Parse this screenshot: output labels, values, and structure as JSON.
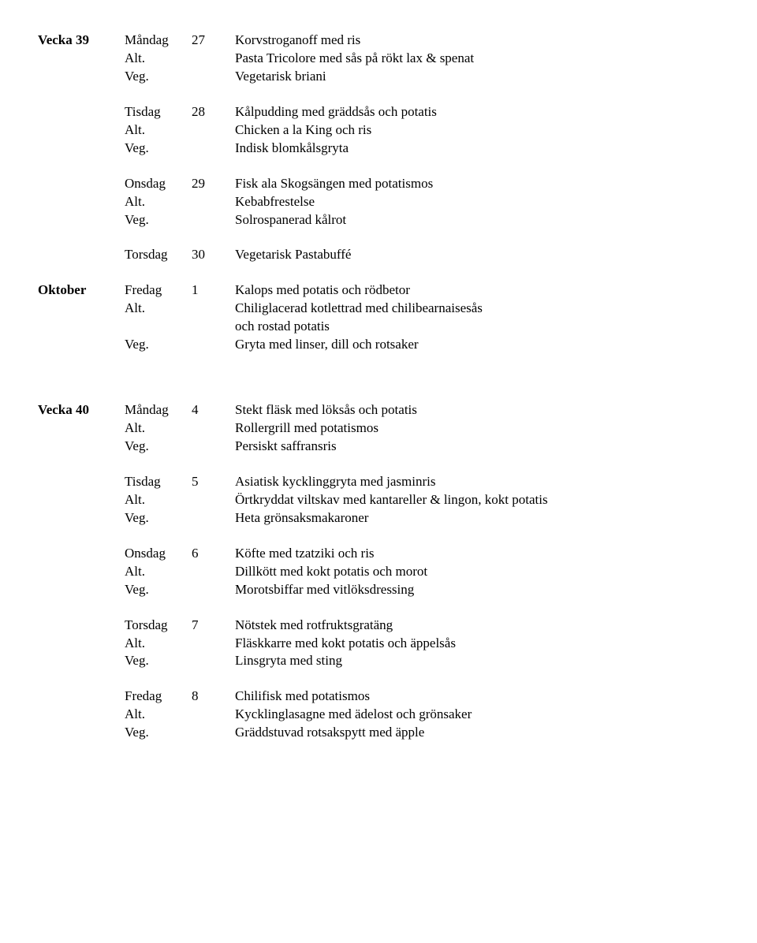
{
  "weeks": [
    {
      "label": "Vecka 39",
      "monthLabel": "Oktober",
      "days": [
        {
          "day": "Måndag",
          "num": "27",
          "rows": [
            {
              "prefix": "",
              "text": "Korvstroganoff med ris"
            },
            {
              "prefix": "Alt.",
              "text": "Pasta Tricolore med sås på rökt lax & spenat"
            },
            {
              "prefix": "Veg.",
              "text": "Vegetarisk briani"
            }
          ]
        },
        {
          "day": "Tisdag",
          "num": "28",
          "rows": [
            {
              "prefix": "",
              "text": "Kålpudding med gräddsås och potatis"
            },
            {
              "prefix": "Alt.",
              "text": "Chicken a la King och ris"
            },
            {
              "prefix": "Veg.",
              "text": "Indisk blomkålsgryta"
            }
          ]
        },
        {
          "day": "Onsdag",
          "num": "29",
          "rows": [
            {
              "prefix": "",
              "text": "Fisk ala Skogsängen med potatismos"
            },
            {
              "prefix": "Alt.",
              "text": "Kebabfrestelse"
            },
            {
              "prefix": "Veg.",
              "text": "Solrospanerad kålrot"
            }
          ]
        },
        {
          "day": "Torsdag",
          "num": "30",
          "rows": [
            {
              "prefix": "",
              "text": "Vegetarisk Pastabuffé"
            }
          ]
        },
        {
          "day": "Fredag",
          "num": "1",
          "monthStart": true,
          "rows": [
            {
              "prefix": "",
              "text": "Kalops med potatis och rödbetor"
            },
            {
              "prefix": "Alt.",
              "text": "Chiliglacerad kotlettrad med chilibearnaisesås"
            },
            {
              "prefix": "",
              "text": "och rostad potatis",
              "indent": true
            },
            {
              "prefix": "Veg.",
              "text": "Gryta med linser, dill och rotsaker"
            }
          ]
        }
      ]
    },
    {
      "label": "Vecka 40",
      "days": [
        {
          "day": "Måndag",
          "num": "4",
          "rows": [
            {
              "prefix": "",
              "text": "Stekt fläsk med löksås och potatis"
            },
            {
              "prefix": "Alt.",
              "text": "Rollergrill med potatismos"
            },
            {
              "prefix": "Veg.",
              "text": "Persiskt saffransris"
            }
          ]
        },
        {
          "day": "Tisdag",
          "num": "5",
          "rows": [
            {
              "prefix": "",
              "text": "Asiatisk kycklinggryta med jasminris"
            },
            {
              "prefix": "Alt.",
              "text": "Örtkryddat viltskav med kantareller & lingon, kokt potatis"
            },
            {
              "prefix": "Veg.",
              "text": "Heta grönsaksmakaroner"
            }
          ]
        },
        {
          "day": "Onsdag",
          "num": "6",
          "rows": [
            {
              "prefix": "",
              "text": "Köfte med tzatziki och ris"
            },
            {
              "prefix": "Alt.",
              "text": "Dillkött med kokt potatis och morot"
            },
            {
              "prefix": "Veg.",
              "text": "Morotsbiffar med vitlöksdressing"
            }
          ]
        },
        {
          "day": "Torsdag",
          "num": "7",
          "rows": [
            {
              "prefix": "",
              "text": "Nötstek med rotfruktsgratäng"
            },
            {
              "prefix": "Alt.",
              "text": "Fläskkarre med kokt potatis och äppelsås"
            },
            {
              "prefix": "Veg.",
              "text": "Linsgryta med sting"
            }
          ]
        },
        {
          "day": "Fredag",
          "num": "8",
          "rows": [
            {
              "prefix": "",
              "text": "Chilifisk med potatismos"
            },
            {
              "prefix": "Alt.",
              "text": "Kycklinglasagne med ädelost och grönsaker"
            },
            {
              "prefix": "Veg.",
              "text": "Gräddstuvad rotsakspytt med äpple"
            }
          ]
        }
      ]
    }
  ]
}
